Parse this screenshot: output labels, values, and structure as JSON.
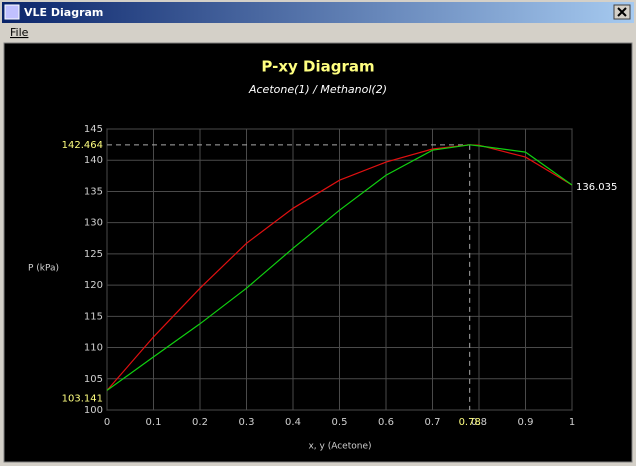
{
  "window": {
    "title": "VLE Diagram",
    "menu": [
      "File"
    ]
  },
  "chart_data": {
    "type": "line",
    "title": "P-xy Diagram",
    "subtitle": "Acetone(1) / Methanol(2)",
    "x_label": "x, y (Acetone)",
    "y_label": "P (kPa)",
    "x": [
      0,
      0.1,
      0.2,
      0.3,
      0.4,
      0.5,
      0.6,
      0.7,
      0.78,
      0.8,
      0.9,
      1
    ],
    "series": [
      {
        "color": "#e01010",
        "values": [
          103.141,
          111.7,
          119.5,
          126.7,
          132.3,
          136.8,
          139.7,
          141.8,
          142.464,
          142.4,
          140.5,
          136.035
        ]
      },
      {
        "color": "#10d010",
        "values": [
          103.141,
          108.5,
          113.8,
          119.5,
          125.9,
          132.0,
          137.6,
          141.6,
          142.464,
          142.3,
          141.3,
          136.035
        ]
      }
    ],
    "xlim": [
      0,
      1
    ],
    "xticks": [
      0,
      0.1,
      0.2,
      0.3,
      0.4,
      0.5,
      0.6,
      0.7,
      0.8,
      0.9,
      1
    ],
    "ylim": [
      100,
      145
    ],
    "yticks": [
      100,
      105,
      110,
      115,
      120,
      125,
      130,
      135,
      140,
      145
    ],
    "grid": true,
    "annotations": {
      "azeotrope_p": 142.464,
      "azeotrope_x": 0.78,
      "p_at_x0": 103.141,
      "p_at_x1": 136.035
    }
  }
}
